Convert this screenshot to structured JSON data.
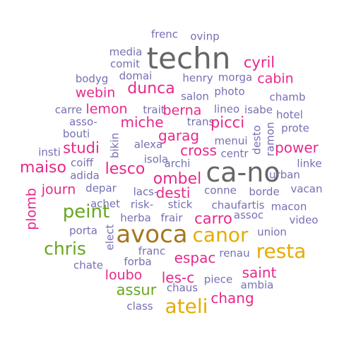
{
  "colors": {
    "background": "#ffffff",
    "purple": "#7570b3",
    "magenta": "#e7298a",
    "green": "#66a61e",
    "gold": "#e6ab02",
    "olive": "#a6761d",
    "gray": "#666666"
  },
  "words": [
    {
      "text": "frenc",
      "color": "purple"
    },
    {
      "text": "ovinp",
      "color": "purple"
    },
    {
      "text": "media",
      "color": "purple"
    },
    {
      "text": "techn",
      "color": "gray"
    },
    {
      "text": "comit",
      "color": "purple"
    },
    {
      "text": "cyril",
      "color": "magenta"
    },
    {
      "text": "bodyg",
      "color": "purple"
    },
    {
      "text": "domai",
      "color": "purple"
    },
    {
      "text": "henry",
      "color": "purple"
    },
    {
      "text": "morga",
      "color": "purple"
    },
    {
      "text": "cabin",
      "color": "magenta"
    },
    {
      "text": "dunca",
      "color": "magenta"
    },
    {
      "text": "webin",
      "color": "magenta"
    },
    {
      "text": "photo",
      "color": "purple"
    },
    {
      "text": "salon",
      "color": "purple"
    },
    {
      "text": "chamb",
      "color": "purple"
    },
    {
      "text": "carre",
      "color": "purple"
    },
    {
      "text": "lemon",
      "color": "magenta"
    },
    {
      "text": "trait",
      "color": "purple"
    },
    {
      "text": "berna",
      "color": "magenta"
    },
    {
      "text": "lineo",
      "color": "purple"
    },
    {
      "text": "isabe",
      "color": "purple"
    },
    {
      "text": "hotel",
      "color": "purple"
    },
    {
      "text": "asso-",
      "color": "purple"
    },
    {
      "text": "miche",
      "color": "magenta"
    },
    {
      "text": "trans",
      "color": "purple"
    },
    {
      "text": "picci",
      "color": "magenta"
    },
    {
      "text": "prote",
      "color": "purple"
    },
    {
      "text": "bouti",
      "color": "purple"
    },
    {
      "text": "garag",
      "color": "magenta"
    },
    {
      "text": "menui",
      "color": "purple"
    },
    {
      "text": "desto",
      "color": "purple"
    },
    {
      "text": "ramon",
      "color": "purple"
    },
    {
      "text": "studi",
      "color": "magenta"
    },
    {
      "text": "alexa",
      "color": "purple"
    },
    {
      "text": "cross",
      "color": "magenta"
    },
    {
      "text": "centr",
      "color": "purple"
    },
    {
      "text": "power",
      "color": "magenta"
    },
    {
      "text": "insti",
      "color": "purple"
    },
    {
      "text": "bikin",
      "color": "purple"
    },
    {
      "text": "isola",
      "color": "purple"
    },
    {
      "text": "maiso",
      "color": "magenta"
    },
    {
      "text": "coiff",
      "color": "purple"
    },
    {
      "text": "lesco",
      "color": "magenta"
    },
    {
      "text": "archi",
      "color": "purple"
    },
    {
      "text": "linke",
      "color": "purple"
    },
    {
      "text": "adida",
      "color": "purple"
    },
    {
      "text": "ombel",
      "color": "magenta"
    },
    {
      "text": "ca-no",
      "color": "gray"
    },
    {
      "text": "urban",
      "color": "purple"
    },
    {
      "text": "journ",
      "color": "magenta"
    },
    {
      "text": "depar",
      "color": "purple"
    },
    {
      "text": "lacs-",
      "color": "purple"
    },
    {
      "text": "desti",
      "color": "magenta"
    },
    {
      "text": "conne",
      "color": "purple"
    },
    {
      "text": "borde",
      "color": "purple"
    },
    {
      "text": "vacan",
      "color": "purple"
    },
    {
      "text": "plomb",
      "color": "magenta"
    },
    {
      "text": "achet",
      "color": "purple"
    },
    {
      "text": "risk-",
      "color": "purple"
    },
    {
      "text": "stick",
      "color": "purple"
    },
    {
      "text": "chaufartis",
      "color": "purple"
    },
    {
      "text": "macon",
      "color": "purple"
    },
    {
      "text": "peint",
      "color": "green"
    },
    {
      "text": "herba",
      "color": "purple"
    },
    {
      "text": "frair",
      "color": "purple"
    },
    {
      "text": "carro",
      "color": "magenta"
    },
    {
      "text": "assoc",
      "color": "purple"
    },
    {
      "text": "video",
      "color": "purple"
    },
    {
      "text": "porta",
      "color": "purple"
    },
    {
      "text": "elect",
      "color": "purple"
    },
    {
      "text": "avoca",
      "color": "olive"
    },
    {
      "text": "canor",
      "color": "gold"
    },
    {
      "text": "union",
      "color": "purple"
    },
    {
      "text": "chris",
      "color": "green"
    },
    {
      "text": "franc",
      "color": "purple"
    },
    {
      "text": "espac",
      "color": "magenta"
    },
    {
      "text": "renau",
      "color": "purple"
    },
    {
      "text": "resta",
      "color": "gold"
    },
    {
      "text": "forba",
      "color": "purple"
    },
    {
      "text": "chate",
      "color": "purple"
    },
    {
      "text": "loubo",
      "color": "magenta"
    },
    {
      "text": "les-c",
      "color": "magenta"
    },
    {
      "text": "saint",
      "color": "magenta"
    },
    {
      "text": "piece",
      "color": "purple"
    },
    {
      "text": "assur",
      "color": "green"
    },
    {
      "text": "chaus",
      "color": "purple"
    },
    {
      "text": "ambia",
      "color": "purple"
    },
    {
      "text": "chang",
      "color": "magenta"
    },
    {
      "text": "class",
      "color": "purple"
    },
    {
      "text": "ateli",
      "color": "gold"
    }
  ]
}
